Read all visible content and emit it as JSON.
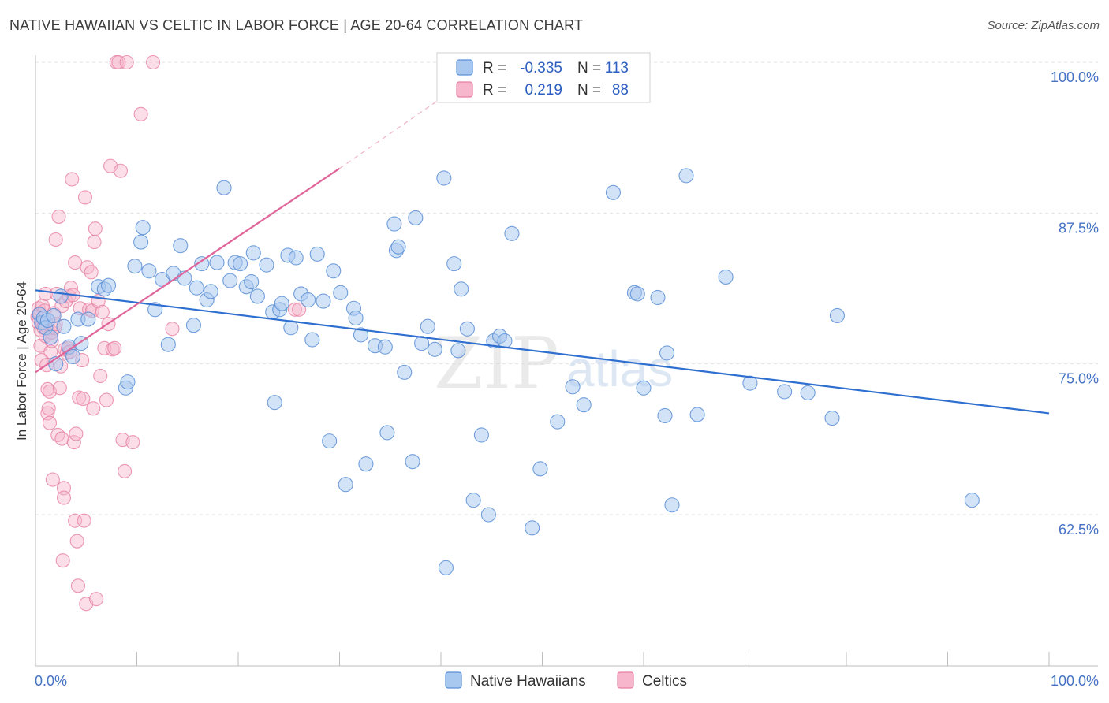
{
  "title": "NATIVE HAWAIIAN VS CELTIC IN LABOR FORCE | AGE 20-64 CORRELATION CHART",
  "source": "Source: ZipAtlas.com",
  "watermark": {
    "zip": "ZIP",
    "atlas": "atlas"
  },
  "colors": {
    "blue_fill": "#a8c8f0",
    "blue_stroke": "#5b8fd6",
    "blue_line": "#2f6fd0",
    "pink_fill": "#f7b6cb",
    "pink_stroke": "#e77fa3",
    "pink_line": "#e0659a",
    "grid": "#e3e3e3",
    "tick_text": "#4472c4"
  },
  "legend": {
    "r_label": "R =",
    "n_label": "N =",
    "rows": [
      {
        "series": "Native Hawaiians",
        "r": "-0.335",
        "n": "113"
      },
      {
        "series": "Celtics",
        "r": "0.219",
        "n": "88"
      }
    ]
  },
  "chart_data": {
    "type": "scatter",
    "title": "NATIVE HAWAIIAN VS CELTIC IN LABOR FORCE | AGE 20-64 CORRELATION CHART",
    "xlabel": "",
    "ylabel": "In Labor Force | Age 20-64",
    "xlim": [
      0,
      100
    ],
    "ylim": [
      50,
      102
    ],
    "x_tick_labels": [
      {
        "value": 0,
        "label": "0.0%"
      },
      {
        "value": 100,
        "label": "100.0%"
      }
    ],
    "y_ticks": [
      {
        "value": 100,
        "label": "100.0%"
      },
      {
        "value": 87.5,
        "label": "87.5%"
      },
      {
        "value": 75,
        "label": "75.0%"
      },
      {
        "value": 62.5,
        "label": "62.5%"
      }
    ],
    "series": [
      {
        "name": "Native Hawaiians",
        "trend": {
          "x": [
            0,
            100
          ],
          "y": [
            81.1,
            70.9
          ]
        },
        "points": [
          [
            0.4,
            79.1
          ],
          [
            0.6,
            78.4
          ],
          [
            0.8,
            78.8
          ],
          [
            1.0,
            78.0
          ],
          [
            1.2,
            78.6
          ],
          [
            1.5,
            77.2
          ],
          [
            1.8,
            79.0
          ],
          [
            2.0,
            75.0
          ],
          [
            2.5,
            80.6
          ],
          [
            2.8,
            78.1
          ],
          [
            3.3,
            76.4
          ],
          [
            3.7,
            75.6
          ],
          [
            4.2,
            78.7
          ],
          [
            4.5,
            76.7
          ],
          [
            5.2,
            78.7
          ],
          [
            6.2,
            81.4
          ],
          [
            6.8,
            81.2
          ],
          [
            7.2,
            81.5
          ],
          [
            8.9,
            73.0
          ],
          [
            9.1,
            73.5
          ],
          [
            9.8,
            83.1
          ],
          [
            10.4,
            85.1
          ],
          [
            10.6,
            86.3
          ],
          [
            11.2,
            82.7
          ],
          [
            11.8,
            79.5
          ],
          [
            12.5,
            82.0
          ],
          [
            13.1,
            76.6
          ],
          [
            13.6,
            82.5
          ],
          [
            14.3,
            84.8
          ],
          [
            14.7,
            82.1
          ],
          [
            15.6,
            78.2
          ],
          [
            15.9,
            81.3
          ],
          [
            16.4,
            83.3
          ],
          [
            16.9,
            80.3
          ],
          [
            17.3,
            81.0
          ],
          [
            17.9,
            83.4
          ],
          [
            18.6,
            89.6
          ],
          [
            19.2,
            81.9
          ],
          [
            19.7,
            83.4
          ],
          [
            20.2,
            83.3
          ],
          [
            20.8,
            81.4
          ],
          [
            21.3,
            81.8
          ],
          [
            21.5,
            84.2
          ],
          [
            21.9,
            80.6
          ],
          [
            22.8,
            83.2
          ],
          [
            23.4,
            79.3
          ],
          [
            23.6,
            71.8
          ],
          [
            24.1,
            79.5
          ],
          [
            24.3,
            80.0
          ],
          [
            24.9,
            84.0
          ],
          [
            25.2,
            78.0
          ],
          [
            25.7,
            83.8
          ],
          [
            26.2,
            80.8
          ],
          [
            26.9,
            80.3
          ],
          [
            27.3,
            77.0
          ],
          [
            27.8,
            84.1
          ],
          [
            28.4,
            80.2
          ],
          [
            29.0,
            68.6
          ],
          [
            29.4,
            82.7
          ],
          [
            30.1,
            80.9
          ],
          [
            30.6,
            65.0
          ],
          [
            31.4,
            79.6
          ],
          [
            31.6,
            78.8
          ],
          [
            32.1,
            77.4
          ],
          [
            32.6,
            66.7
          ],
          [
            33.5,
            76.5
          ],
          [
            34.5,
            76.4
          ],
          [
            34.7,
            69.3
          ],
          [
            35.4,
            86.6
          ],
          [
            35.6,
            84.4
          ],
          [
            35.8,
            84.7
          ],
          [
            36.4,
            74.3
          ],
          [
            37.2,
            66.9
          ],
          [
            37.5,
            87.1
          ],
          [
            38.1,
            76.7
          ],
          [
            38.7,
            78.1
          ],
          [
            39.4,
            76.2
          ],
          [
            40.5,
            58.1
          ],
          [
            40.3,
            90.4
          ],
          [
            41.3,
            83.3
          ],
          [
            41.7,
            76.1
          ],
          [
            42.0,
            81.2
          ],
          [
            42.6,
            77.9
          ],
          [
            43.2,
            63.7
          ],
          [
            44.0,
            69.1
          ],
          [
            44.7,
            62.5
          ],
          [
            45.2,
            76.9
          ],
          [
            45.8,
            77.3
          ],
          [
            46.3,
            76.9
          ],
          [
            47.0,
            85.8
          ],
          [
            49.0,
            61.4
          ],
          [
            49.8,
            66.3
          ],
          [
            51.5,
            70.2
          ],
          [
            53.0,
            73.1
          ],
          [
            54.1,
            71.6
          ],
          [
            57.0,
            89.2
          ],
          [
            59.1,
            80.9
          ],
          [
            59.4,
            80.8
          ],
          [
            60.0,
            73.0
          ],
          [
            61.4,
            80.5
          ],
          [
            62.1,
            70.7
          ],
          [
            62.3,
            75.9
          ],
          [
            62.8,
            63.3
          ],
          [
            64.2,
            90.6
          ],
          [
            65.3,
            70.8
          ],
          [
            68.1,
            82.2
          ],
          [
            70.5,
            73.4
          ],
          [
            73.9,
            72.7
          ],
          [
            76.2,
            72.6
          ],
          [
            78.6,
            70.5
          ],
          [
            79.1,
            79.0
          ],
          [
            92.4,
            63.7
          ]
        ]
      },
      {
        "name": "Celtics",
        "trend": {
          "x": [
            0,
            30.0
          ],
          "y": [
            74.3,
            91.2
          ]
        },
        "trend_dashed": {
          "x": [
            30.0,
            40.0
          ],
          "y": [
            91.2,
            97.0
          ]
        },
        "points": [
          [
            0.2,
            78.9
          ],
          [
            0.3,
            79.6
          ],
          [
            0.3,
            78.4
          ],
          [
            0.4,
            79.2
          ],
          [
            0.5,
            77.8
          ],
          [
            0.5,
            76.5
          ],
          [
            0.6,
            75.3
          ],
          [
            0.7,
            78.3
          ],
          [
            0.7,
            79.8
          ],
          [
            0.8,
            78.0
          ],
          [
            0.9,
            79.4
          ],
          [
            1.0,
            77.3
          ],
          [
            1.0,
            80.8
          ],
          [
            1.1,
            74.9
          ],
          [
            1.2,
            72.9
          ],
          [
            1.2,
            70.9
          ],
          [
            1.3,
            71.3
          ],
          [
            1.4,
            72.7
          ],
          [
            1.4,
            70.1
          ],
          [
            1.5,
            76.0
          ],
          [
            1.6,
            76.9
          ],
          [
            1.6,
            77.6
          ],
          [
            1.7,
            65.4
          ],
          [
            1.8,
            79.2
          ],
          [
            1.9,
            78.0
          ],
          [
            2.0,
            78.3
          ],
          [
            2.0,
            85.3
          ],
          [
            2.1,
            80.8
          ],
          [
            2.2,
            69.1
          ],
          [
            2.3,
            87.2
          ],
          [
            2.4,
            73.0
          ],
          [
            2.5,
            74.8
          ],
          [
            2.6,
            79.8
          ],
          [
            2.6,
            68.8
          ],
          [
            2.7,
            58.7
          ],
          [
            2.8,
            64.7
          ],
          [
            2.8,
            63.9
          ],
          [
            2.9,
            76.2
          ],
          [
            3.0,
            80.2
          ],
          [
            3.1,
            75.9
          ],
          [
            3.2,
            76.3
          ],
          [
            3.3,
            80.6
          ],
          [
            3.4,
            76.0
          ],
          [
            3.5,
            81.3
          ],
          [
            3.6,
            90.3
          ],
          [
            3.7,
            80.7
          ],
          [
            3.8,
            68.5
          ],
          [
            3.9,
            83.4
          ],
          [
            3.9,
            62.0
          ],
          [
            4.0,
            69.2
          ],
          [
            4.1,
            60.3
          ],
          [
            4.2,
            56.6
          ],
          [
            4.3,
            72.2
          ],
          [
            4.4,
            79.6
          ],
          [
            4.6,
            75.3
          ],
          [
            4.7,
            72.1
          ],
          [
            4.8,
            62.0
          ],
          [
            4.9,
            88.8
          ],
          [
            5.0,
            55.1
          ],
          [
            5.1,
            83.0
          ],
          [
            5.3,
            79.5
          ],
          [
            5.5,
            82.6
          ],
          [
            5.6,
            79.4
          ],
          [
            5.7,
            71.3
          ],
          [
            5.8,
            85.1
          ],
          [
            5.9,
            86.2
          ],
          [
            6.0,
            55.5
          ],
          [
            6.2,
            80.2
          ],
          [
            6.4,
            74.0
          ],
          [
            6.6,
            79.3
          ],
          [
            6.8,
            76.3
          ],
          [
            7.0,
            72.0
          ],
          [
            7.2,
            78.3
          ],
          [
            7.4,
            91.4
          ],
          [
            7.6,
            76.2
          ],
          [
            7.8,
            76.3
          ],
          [
            8.0,
            100.0
          ],
          [
            8.2,
            100.0
          ],
          [
            8.4,
            91.0
          ],
          [
            8.6,
            68.7
          ],
          [
            8.8,
            66.1
          ],
          [
            9.0,
            100.0
          ],
          [
            9.6,
            68.5
          ],
          [
            10.4,
            95.7
          ],
          [
            11.6,
            100.0
          ],
          [
            13.5,
            77.9
          ],
          [
            25.6,
            79.5
          ],
          [
            26.0,
            79.5
          ]
        ]
      }
    ]
  }
}
